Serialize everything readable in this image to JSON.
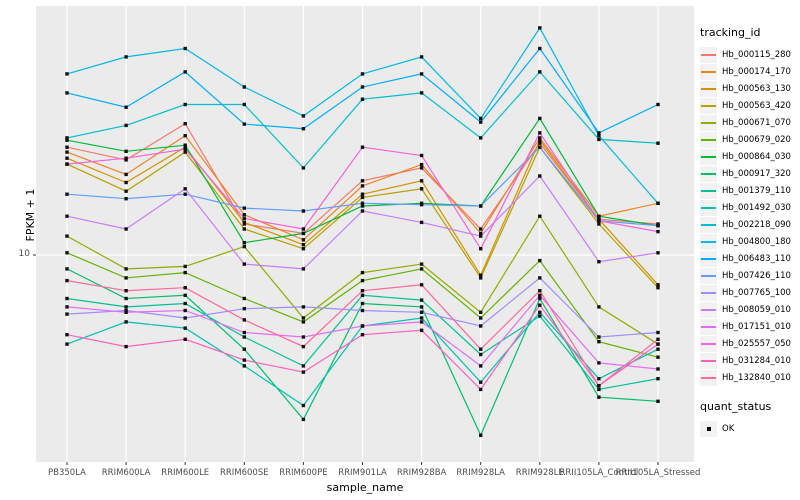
{
  "chart_data": {
    "type": "line",
    "title": "",
    "xlabel": "sample_name",
    "ylabel": "FPKM + 1",
    "y_scale": "log10",
    "y_tick_labels": [
      "10"
    ],
    "y_tick_value": 10,
    "ylim_approx": [
      1.4,
      100
    ],
    "grid": "major-on",
    "panel_bg": "#EBEBEB",
    "grid_color": "#FFFFFF",
    "marker_color": "#111111",
    "marker_shape": "filled-square",
    "tick_text_color": "#4D4D4D",
    "categories": [
      "PB350LA",
      "RRIM600LA",
      "RRIM600LE",
      "RRIM600SE",
      "RRIM600PE",
      "RRIM901LA",
      "RRIM928BA",
      "RRIM928LA",
      "RRIM928LE",
      "RRII105LA_Control",
      "RRII105LA_Stressed"
    ],
    "legend": {
      "title": "tracking_id",
      "position": "right"
    },
    "quant_status_legend": {
      "title": "quant_status",
      "items": [
        {
          "label": "OK",
          "marker": "black-square"
        }
      ]
    },
    "series": [
      {
        "name": "Hb_000115_280",
        "color": "#F8766D",
        "values": [
          27,
          24,
          33.5,
          13.3,
          12.2,
          19.8,
          22.3,
          12.7,
          28,
          13.9,
          13.3
        ]
      },
      {
        "name": "Hb_000174_170",
        "color": "#E88526",
        "values": [
          25.8,
          21,
          30,
          14.5,
          11.5,
          18.9,
          23,
          12.2,
          29.4,
          14.3,
          16.1
        ]
      },
      {
        "name": "Hb_000563_130",
        "color": "#D39200",
        "values": [
          24.4,
          19.5,
          27,
          13.5,
          11,
          17.5,
          19.8,
          8.3,
          28.8,
          13.9,
          7.6
        ]
      },
      {
        "name": "Hb_000563_420",
        "color": "#B79F00",
        "values": [
          23.1,
          18,
          25.8,
          12.7,
          10.6,
          17,
          18.4,
          8.1,
          27,
          13.3,
          7.4
        ]
      },
      {
        "name": "Hb_000671_070",
        "color": "#93AA00",
        "values": [
          11.9,
          8.8,
          9,
          10.8,
          5.6,
          8.5,
          9.2,
          5.9,
          14.3,
          6.2,
          4.4
        ]
      },
      {
        "name": "Hb_000679_020",
        "color": "#64B200",
        "values": [
          10.2,
          8.1,
          8.5,
          6.7,
          5.4,
          7.9,
          8.8,
          5.6,
          9.5,
          4.5,
          3.9
        ]
      },
      {
        "name": "Hb_000864_030",
        "color": "#00BA38",
        "values": [
          28.8,
          26,
          27.5,
          11.2,
          12.2,
          15.7,
          16.1,
          15.7,
          35.2,
          14.3,
          13.1
        ]
      },
      {
        "name": "Hb_000917_320",
        "color": "#00BE6C",
        "values": [
          8.8,
          6.7,
          6.9,
          4.2,
          2.2,
          6.4,
          6.2,
          1.9,
          6.7,
          2.7,
          2.6
        ]
      },
      {
        "name": "Hb_001379_110",
        "color": "#00C094",
        "values": [
          6.7,
          6.2,
          6.4,
          4.7,
          3.6,
          6.9,
          6.6,
          4,
          5.7,
          2.9,
          3.2
        ]
      },
      {
        "name": "Hb_001492_030",
        "color": "#00C1B2",
        "values": [
          4.4,
          5.4,
          5.1,
          3.6,
          2.5,
          5.2,
          5.6,
          3.1,
          5.9,
          3.2,
          4.2
        ]
      },
      {
        "name": "Hb_002218_090",
        "color": "#00BECC",
        "values": [
          29.4,
          33,
          40,
          40,
          22.3,
          42,
          44.5,
          29.4,
          54,
          29,
          28
        ]
      },
      {
        "name": "Hb_004800_180",
        "color": "#00B8E3",
        "values": [
          53,
          62,
          67,
          47,
          36,
          53,
          62,
          35.2,
          81,
          30,
          16.1
        ]
      },
      {
        "name": "Hb_006483_110",
        "color": "#00ACFC",
        "values": [
          44.5,
          39,
          54,
          33.4,
          32,
          47,
          53,
          34,
          67,
          30.8,
          40
        ]
      },
      {
        "name": "Hb_007426_110",
        "color": "#619CFF",
        "values": [
          17.5,
          16.8,
          17.5,
          15.4,
          15,
          16.1,
          15.9,
          15.7,
          27,
          13.7,
          13.1
        ]
      },
      {
        "name": "Hb_007765_100",
        "color": "#9F8CFF",
        "values": [
          5.8,
          6,
          5.6,
          6.1,
          6.2,
          6,
          5.9,
          5.2,
          8.1,
          4.7,
          4.9
        ]
      },
      {
        "name": "Hb_008059_010",
        "color": "#C77CFF",
        "values": [
          14.3,
          12.7,
          18.4,
          9.2,
          8.8,
          15,
          13.5,
          11.9,
          20.7,
          9.4,
          10.2
        ]
      },
      {
        "name": "Hb_017151_010",
        "color": "#E36EF6",
        "values": [
          6.2,
          5.9,
          6,
          4.9,
          4.7,
          5.2,
          5.4,
          3.6,
          6.9,
          3.7,
          3.5
        ]
      },
      {
        "name": "Hb_025557_050",
        "color": "#F562DD",
        "values": [
          23.1,
          24.4,
          26.5,
          14,
          12.7,
          27,
          25,
          10.6,
          30.8,
          13.7,
          12.4
        ]
      },
      {
        "name": "Hb_031284_010",
        "color": "#FF61BE",
        "values": [
          4.8,
          4.3,
          4.6,
          3.8,
          3.4,
          4.8,
          5,
          2.9,
          6.3,
          3,
          4.4
        ]
      },
      {
        "name": "Hb_132840_010",
        "color": "#FF689F",
        "values": [
          7.9,
          7.2,
          7.4,
          5.5,
          4.3,
          7.2,
          7.6,
          4.2,
          7.2,
          3,
          4.6
        ]
      }
    ]
  }
}
